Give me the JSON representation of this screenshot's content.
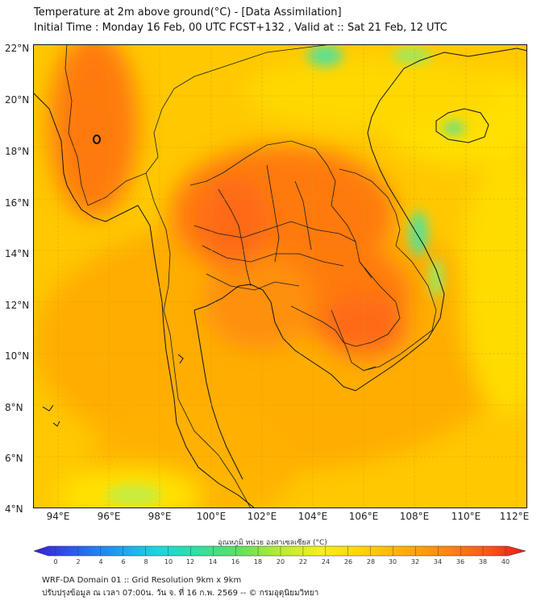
{
  "header": {
    "title": "Temperature at 2m above ground(°C) - [Data Assimilation]",
    "subtitle": "Initial Time : Monday 16 Feb, 00 UTC FCST+132 , Valid at :: Sat 21 Feb, 12 UTC"
  },
  "axes": {
    "lat_labels": [
      "22°N",
      "20°N",
      "18°N",
      "16°N",
      "14°N",
      "12°N",
      "10°N",
      "8°N",
      "6°N",
      "4°N"
    ],
    "lon_labels": [
      "94°E",
      "96°E",
      "98°E",
      "100°E",
      "102°E",
      "104°E",
      "106°E",
      "108°E",
      "110°E",
      "112°E"
    ]
  },
  "colorbar": {
    "title": "อุณหภูมิ หน่วย องศาเซลเซียส (°C)",
    "ticks": [
      "0",
      "2",
      "4",
      "6",
      "8",
      "10",
      "12",
      "14",
      "16",
      "18",
      "20",
      "22",
      "24",
      "26",
      "28",
      "30",
      "32",
      "34",
      "36",
      "38",
      "40"
    ],
    "colors": [
      "#3b1fd6",
      "#2a5cf0",
      "#1e9bf0",
      "#18d6e0",
      "#2ee0a0",
      "#5fe060",
      "#b8ec30",
      "#f5f018",
      "#ffd400",
      "#ffb000",
      "#ff8a10",
      "#ff5a1a",
      "#e81818"
    ]
  },
  "footer": {
    "line1": "WRF-DA Domain 01 :: Grid Resolution 9km x 9km",
    "line2": "ปรับปรุงข้อมูล ณ เวลา 07:00น. วัน จ. ที่ 16 ก.พ. 2569 -- © กรมอุตุนิยมวิทยา"
  }
}
